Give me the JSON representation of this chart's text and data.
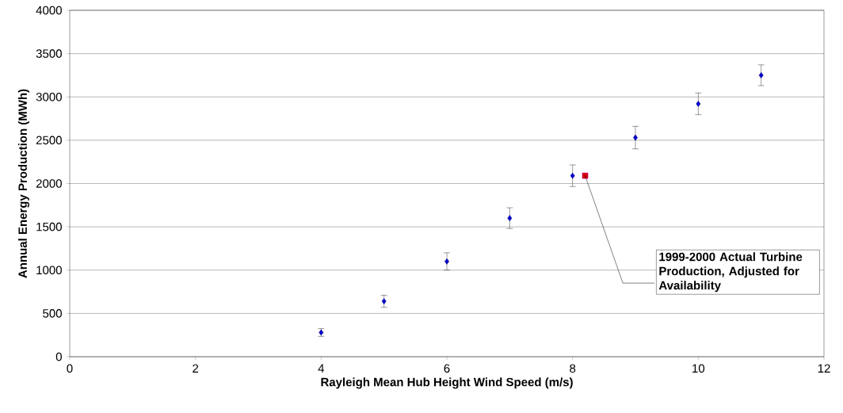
{
  "chart_data": {
    "type": "scatter",
    "xlabel": "Rayleigh Mean Hub Height Wind Speed (m/s)",
    "ylabel": "Annual Energy Production (MWh)",
    "series": [
      {
        "color": "#000080",
        "marker": "diamond",
        "x": [
          4,
          5,
          6,
          7,
          8,
          9,
          10,
          11
        ],
        "values": [
          280,
          640,
          1100,
          1600,
          2090,
          2530,
          2920,
          3250
        ],
        "errors": [
          45,
          70,
          100,
          120,
          125,
          130,
          125,
          120
        ]
      },
      {
        "color": "#ff00ff",
        "marker": "square",
        "x": [
          8.2
        ],
        "values": [
          2090
        ]
      }
    ],
    "xlim": [
      0,
      12
    ],
    "ylim": [
      0,
      4000
    ],
    "xticks": [
      0,
      2,
      4,
      6,
      8,
      10,
      12
    ],
    "yticks": [
      0,
      500,
      1000,
      1500,
      2000,
      2500,
      3000,
      3500,
      4000
    ],
    "grid": "y",
    "annotations": [
      {
        "text": "1999-2000 Actual Turbine Production, Adjusted for Availability",
        "x": 8.2,
        "y": 2090
      }
    ]
  }
}
